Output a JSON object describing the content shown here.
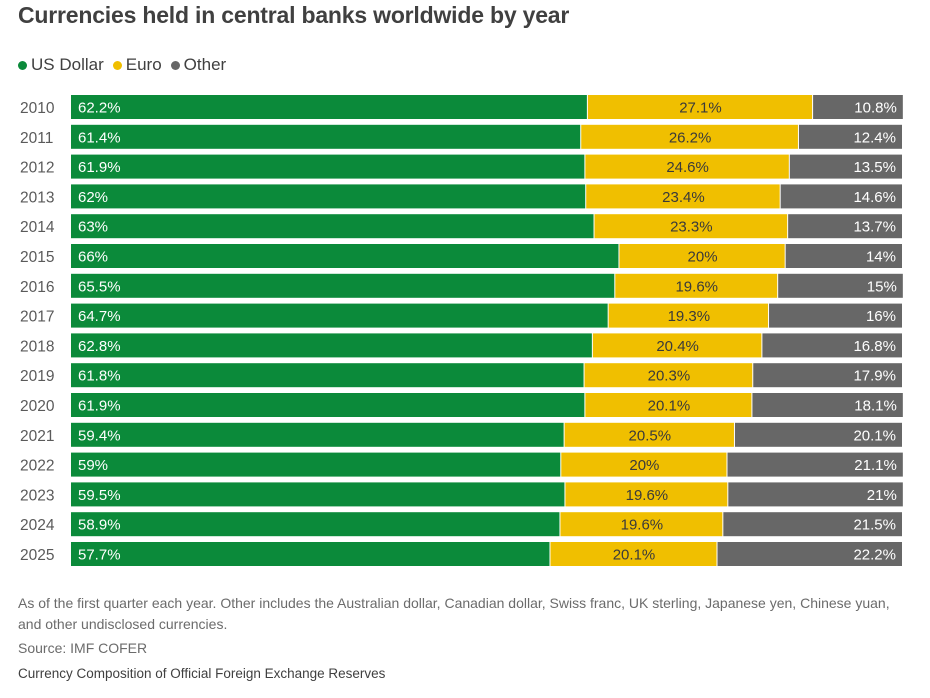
{
  "colors": {
    "usd": "#0b8a3a",
    "eur": "#f0bf00",
    "other": "#676767"
  },
  "chart_data": {
    "type": "bar",
    "orientation": "horizontal",
    "stacked": true,
    "title": "Currencies held in central banks worldwide by year",
    "categories": [
      "2010",
      "2011",
      "2012",
      "2013",
      "2014",
      "2015",
      "2016",
      "2017",
      "2018",
      "2019",
      "2020",
      "2021",
      "2022",
      "2023",
      "2024",
      "2025"
    ],
    "series": [
      {
        "name": "US Dollar",
        "key": "usd",
        "values": [
          62.2,
          61.4,
          61.9,
          62,
          63,
          66,
          65.5,
          64.7,
          62.8,
          61.8,
          61.9,
          59.4,
          59,
          59.5,
          58.9,
          57.7
        ],
        "labels": [
          "62.2%",
          "61.4%",
          "61.9%",
          "62%",
          "63%",
          "66%",
          "65.5%",
          "64.7%",
          "62.8%",
          "61.8%",
          "61.9%",
          "59.4%",
          "59%",
          "59.5%",
          "58.9%",
          "57.7%"
        ]
      },
      {
        "name": "Euro",
        "key": "eur",
        "values": [
          27.1,
          26.2,
          24.6,
          23.4,
          23.3,
          20,
          19.6,
          19.3,
          20.4,
          20.3,
          20.1,
          20.5,
          20,
          19.6,
          19.6,
          20.1
        ],
        "labels": [
          "27.1%",
          "26.2%",
          "24.6%",
          "23.4%",
          "23.3%",
          "20%",
          "19.6%",
          "19.3%",
          "20.4%",
          "20.3%",
          "20.1%",
          "20.5%",
          "20%",
          "19.6%",
          "19.6%",
          "20.1%"
        ]
      },
      {
        "name": "Other",
        "key": "other",
        "values": [
          10.8,
          12.4,
          13.5,
          14.6,
          13.7,
          14,
          15,
          16,
          16.8,
          17.9,
          18.1,
          20.1,
          21.1,
          21,
          21.5,
          22.2
        ],
        "labels": [
          "10.8%",
          "12.4%",
          "13.5%",
          "14.6%",
          "13.7%",
          "14%",
          "15%",
          "16%",
          "16.8%",
          "17.9%",
          "18.1%",
          "20.1%",
          "21.1%",
          "21%",
          "21.5%",
          "22.2%"
        ]
      }
    ],
    "xlim": [
      0,
      100
    ]
  },
  "footnote": "As of the first quarter each year. Other includes the Australian dollar, Canadian dollar, Swiss franc, UK sterling, Japanese yen, Chinese yuan, and other undisclosed currencies.",
  "source": "Source: IMF COFER",
  "credit": "Currency Composition of Official Foreign Exchange Reserves"
}
